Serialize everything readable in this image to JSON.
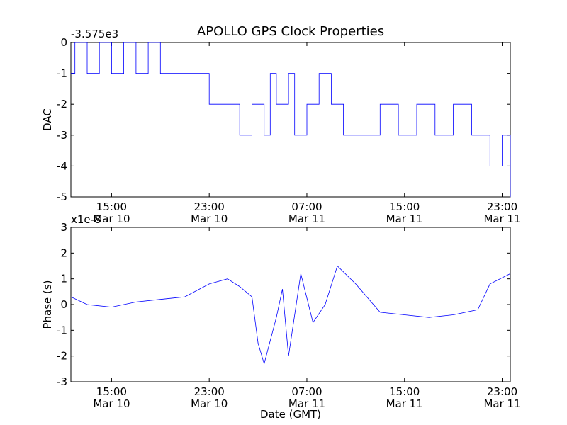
{
  "figure": {
    "title": "APOLLO GPS Clock Properties",
    "xlabel": "Date (GMT)"
  },
  "colors": {
    "series": "#0000ff",
    "axes": "#000000",
    "background": "#ffffff"
  },
  "x_ticks": [
    {
      "time": "Mar 10 15:00",
      "line1": "15:00",
      "line2": "Mar 10"
    },
    {
      "time": "Mar 10 23:00",
      "line1": "23:00",
      "line2": "Mar 10"
    },
    {
      "time": "Mar 11 07:00",
      "line1": "07:00",
      "line2": "Mar 11"
    },
    {
      "time": "Mar 11 15:00",
      "line1": "15:00",
      "line2": "Mar 11"
    },
    {
      "time": "Mar 11 23:00",
      "line1": "23:00",
      "line2": "Mar 11"
    }
  ],
  "chart_data": [
    {
      "type": "line",
      "title": "APOLLO GPS Clock Properties",
      "xlabel": "",
      "ylabel": "DAC",
      "y_offset_label": "-3.575e3",
      "xlim": [
        "Mar 10 11:40",
        "Mar 11 23:40"
      ],
      "ylim": [
        -5,
        0
      ],
      "yticks": [
        "0",
        "-1",
        "-2",
        "-3",
        "-4",
        "-5"
      ],
      "grid": false,
      "series": [
        {
          "color": "#0000ff",
          "x": [
            "Mar 10 11:40",
            "Mar 10 12:00",
            "Mar 10 13:00",
            "Mar 10 14:00",
            "Mar 10 15:00",
            "Mar 10 16:00",
            "Mar 10 17:00",
            "Mar 10 18:00",
            "Mar 10 19:00",
            "Mar 10 20:00",
            "Mar 10 21:30",
            "Mar 10 23:00",
            "Mar 11 00:30",
            "Mar 11 01:30",
            "Mar 11 02:30",
            "Mar 11 03:30",
            "Mar 11 04:00",
            "Mar 11 04:30",
            "Mar 11 05:30",
            "Mar 11 06:00",
            "Mar 11 07:00",
            "Mar 11 08:00",
            "Mar 11 09:00",
            "Mar 11 10:00",
            "Mar 11 11:30",
            "Mar 11 13:00",
            "Mar 11 14:30",
            "Mar 11 16:00",
            "Mar 11 17:30",
            "Mar 11 19:00",
            "Mar 11 20:30",
            "Mar 11 22:00",
            "Mar 11 23:00",
            "Mar 11 23:40"
          ],
          "values": [
            -1,
            0,
            -1,
            0,
            -1,
            0,
            -1,
            0,
            -1,
            -1,
            -1,
            -2,
            -2,
            -3,
            -2,
            -3,
            -1,
            -2,
            -1,
            -3,
            -2,
            -1,
            -2,
            -3,
            -3,
            -2,
            -3,
            -2,
            -3,
            -2,
            -3,
            -4,
            -3,
            -5
          ]
        }
      ]
    },
    {
      "type": "line",
      "xlabel": "Date (GMT)",
      "ylabel": "Phase (s)",
      "y_offset_label": "x1e-8",
      "xlim": [
        "Mar 10 11:40",
        "Mar 11 23:40"
      ],
      "ylim": [
        -3,
        3
      ],
      "yticks": [
        "3",
        "2",
        "1",
        "0",
        "-1",
        "-2",
        "-3"
      ],
      "grid": false,
      "series": [
        {
          "color": "#0000ff",
          "x": [
            "Mar 10 11:40",
            "Mar 10 13:00",
            "Mar 10 15:00",
            "Mar 10 17:00",
            "Mar 10 19:00",
            "Mar 10 21:00",
            "Mar 10 23:00",
            "Mar 11 00:30",
            "Mar 11 01:30",
            "Mar 11 02:30",
            "Mar 11 03:00",
            "Mar 11 03:30",
            "Mar 11 04:30",
            "Mar 11 05:00",
            "Mar 11 05:30",
            "Mar 11 06:30",
            "Mar 11 07:30",
            "Mar 11 08:30",
            "Mar 11 09:30",
            "Mar 11 11:00",
            "Mar 11 13:00",
            "Mar 11 15:00",
            "Mar 11 17:00",
            "Mar 11 19:00",
            "Mar 11 21:00",
            "Mar 11 22:00",
            "Mar 11 23:40"
          ],
          "values": [
            0.3,
            0,
            -0.1,
            0.1,
            0.2,
            0.3,
            0.8,
            1.0,
            0.7,
            0.3,
            -1.5,
            -2.3,
            -0.5,
            0.6,
            -2.0,
            1.2,
            -0.7,
            0.0,
            1.5,
            0.8,
            -0.3,
            -0.4,
            -0.5,
            -0.4,
            -0.2,
            0.8,
            1.2
          ]
        }
      ]
    }
  ]
}
